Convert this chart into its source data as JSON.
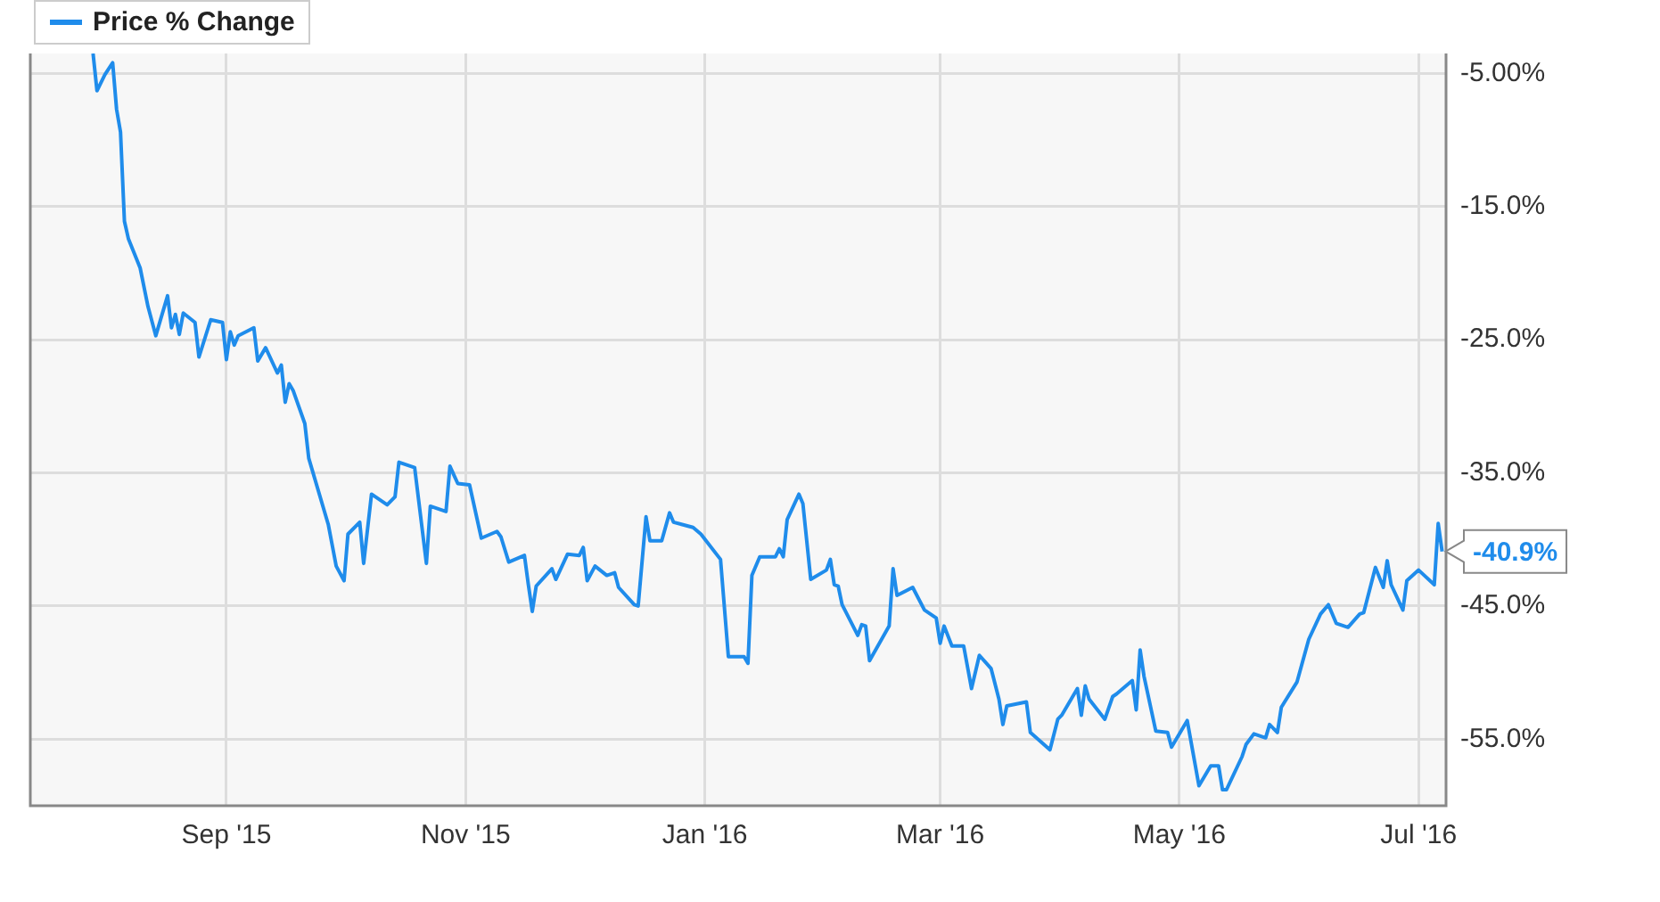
{
  "chart_data": {
    "type": "line",
    "legend": "top left",
    "grid": true,
    "marker": "none",
    "line_style": "solid",
    "xlim": [
      "2015-07-13",
      "2016-07-08"
    ],
    "xticks": [
      {
        "value": "2015-09-01",
        "label": "Sep '15"
      },
      {
        "value": "2015-11-01",
        "label": "Nov '15"
      },
      {
        "value": "2016-01-01",
        "label": "Jan '16"
      },
      {
        "value": "2016-03-01",
        "label": "Mar '16"
      },
      {
        "value": "2016-05-01",
        "label": "May '16"
      },
      {
        "value": "2016-07-01",
        "label": "Jul '16"
      }
    ],
    "ylim": [
      -60,
      -3.5
    ],
    "yticks": [
      {
        "value": -5,
        "label": "-5.00%"
      },
      {
        "value": -15,
        "label": "-15.0%"
      },
      {
        "value": -25,
        "label": "-25.0%"
      },
      {
        "value": -35,
        "label": "-35.0%"
      },
      {
        "value": -45,
        "label": "-45.0%"
      },
      {
        "value": -55,
        "label": "-55.0%"
      }
    ],
    "annotations": [
      {
        "text": "-40.9%",
        "x": "2016-07-07",
        "y": -40.9
      }
    ],
    "x": [
      "2015-07-29",
      "2015-07-30",
      "2015-08-01",
      "2015-08-03",
      "2015-08-04",
      "2015-08-05",
      "2015-08-06",
      "2015-08-07",
      "2015-08-10",
      "2015-08-12",
      "2015-08-14",
      "2015-08-17",
      "2015-08-18",
      "2015-08-19",
      "2015-08-20",
      "2015-08-21",
      "2015-08-24",
      "2015-08-25",
      "2015-08-28",
      "2015-08-31",
      "2015-09-01",
      "2015-09-02",
      "2015-09-03",
      "2015-09-04",
      "2015-09-08",
      "2015-09-09",
      "2015-09-11",
      "2015-09-14",
      "2015-09-15",
      "2015-09-16",
      "2015-09-17",
      "2015-09-18",
      "2015-09-21",
      "2015-09-22",
      "2015-09-27",
      "2015-09-29",
      "2015-10-01",
      "2015-10-02",
      "2015-10-05",
      "2015-10-06",
      "2015-10-08",
      "2015-10-12",
      "2015-10-14",
      "2015-10-15",
      "2015-10-19",
      "2015-10-22",
      "2015-10-23",
      "2015-10-27",
      "2015-10-28",
      "2015-10-30",
      "2015-11-02",
      "2015-11-05",
      "2015-11-09",
      "2015-11-10",
      "2015-11-12",
      "2015-11-16",
      "2015-11-17",
      "2015-11-18",
      "2015-11-19",
      "2015-11-23",
      "2015-11-24",
      "2015-11-27",
      "2015-11-30",
      "2015-12-01",
      "2015-12-02",
      "2015-12-04",
      "2015-12-07",
      "2015-12-09",
      "2015-12-10",
      "2015-12-14",
      "2015-12-15",
      "2015-12-17",
      "2015-12-18",
      "2015-12-21",
      "2015-12-23",
      "2015-12-24",
      "2015-12-29",
      "2015-12-31",
      "2016-01-05",
      "2016-01-07",
      "2016-01-11",
      "2016-01-12",
      "2016-01-13",
      "2016-01-15",
      "2016-01-19",
      "2016-01-20",
      "2016-01-21",
      "2016-01-22",
      "2016-01-25",
      "2016-01-26",
      "2016-01-28",
      "2016-02-01",
      "2016-02-02",
      "2016-02-03",
      "2016-02-04",
      "2016-02-05",
      "2016-02-09",
      "2016-02-10",
      "2016-02-11",
      "2016-02-12",
      "2016-02-17",
      "2016-02-18",
      "2016-02-19",
      "2016-02-23",
      "2016-02-26",
      "2016-02-29",
      "2016-03-01",
      "2016-03-02",
      "2016-03-04",
      "2016-03-07",
      "2016-03-09",
      "2016-03-11",
      "2016-03-14",
      "2016-03-16",
      "2016-03-17",
      "2016-03-18",
      "2016-03-23",
      "2016-03-24",
      "2016-03-29",
      "2016-03-31",
      "2016-04-01",
      "2016-04-05",
      "2016-04-06",
      "2016-04-07",
      "2016-04-08",
      "2016-04-12",
      "2016-04-14",
      "2016-04-15",
      "2016-04-19",
      "2016-04-20",
      "2016-04-21",
      "2016-04-22",
      "2016-04-25",
      "2016-04-28",
      "2016-04-29",
      "2016-05-03",
      "2016-05-06",
      "2016-05-09",
      "2016-05-11",
      "2016-05-12",
      "2016-05-13",
      "2016-05-17",
      "2016-05-18",
      "2016-05-20",
      "2016-05-23",
      "2016-05-24",
      "2016-05-26",
      "2016-05-27",
      "2016-05-31",
      "2016-06-03",
      "2016-06-06",
      "2016-06-08",
      "2016-06-10",
      "2016-06-13",
      "2016-06-16",
      "2016-06-17",
      "2016-06-20",
      "2016-06-22",
      "2016-06-23",
      "2016-06-24",
      "2016-06-27",
      "2016-06-28",
      "2016-07-01",
      "2016-07-05",
      "2016-07-06",
      "2016-07-07"
    ],
    "series": [
      {
        "name": "Price % Change",
        "color": "#1f8ceb",
        "values": [
          -3.5,
          -6.3,
          -5.1,
          -4.2,
          -7.7,
          -9.4,
          -16.1,
          -17.4,
          -19.6,
          -22.5,
          -24.7,
          -21.7,
          -24.1,
          -23.1,
          -24.6,
          -23.0,
          -23.7,
          -26.3,
          -23.5,
          -23.7,
          -26.5,
          -24.4,
          -25.4,
          -24.7,
          -24.1,
          -26.6,
          -25.6,
          -27.5,
          -26.9,
          -29.7,
          -28.3,
          -28.8,
          -31.3,
          -33.9,
          -38.9,
          -42.0,
          -43.1,
          -39.6,
          -38.7,
          -41.8,
          -36.6,
          -37.4,
          -36.8,
          -34.2,
          -34.6,
          -41.8,
          -37.5,
          -37.9,
          -34.5,
          -35.8,
          -35.9,
          -39.9,
          -39.4,
          -39.8,
          -41.7,
          -41.2,
          -43.4,
          -45.4,
          -43.5,
          -42.2,
          -43.0,
          -41.1,
          -41.2,
          -40.6,
          -43.1,
          -42.0,
          -42.7,
          -42.5,
          -43.6,
          -44.9,
          -45.0,
          -38.3,
          -40.1,
          -40.1,
          -38.0,
          -38.7,
          -39.1,
          -39.6,
          -41.5,
          -48.8,
          -48.8,
          -49.3,
          -42.7,
          -41.3,
          -41.3,
          -40.7,
          -41.3,
          -38.5,
          -36.6,
          -37.3,
          -43.0,
          -42.3,
          -41.5,
          -43.4,
          -43.5,
          -44.9,
          -47.2,
          -46.4,
          -46.5,
          -49.1,
          -46.5,
          -42.2,
          -44.2,
          -43.6,
          -45.3,
          -45.9,
          -47.8,
          -46.5,
          -48.0,
          -48.0,
          -51.2,
          -48.7,
          -49.7,
          -52.0,
          -53.9,
          -52.5,
          -52.2,
          -54.5,
          -55.8,
          -53.5,
          -53.2,
          -51.2,
          -53.2,
          -51.0,
          -52.0,
          -53.5,
          -51.8,
          -51.6,
          -50.6,
          -52.8,
          -48.3,
          -50.3,
          -54.4,
          -54.5,
          -55.6,
          -53.6,
          -58.5,
          -57.0,
          -57.0,
          -58.8,
          -58.8,
          -56.3,
          -55.4,
          -54.6,
          -54.9,
          -53.9,
          -54.5,
          -52.6,
          -50.7,
          -47.5,
          -45.6,
          -44.9,
          -46.3,
          -46.6,
          -45.6,
          -45.5,
          -42.1,
          -43.6,
          -41.6,
          -43.4,
          -45.3,
          -43.1,
          -42.3,
          -43.4,
          -38.8,
          -40.9
        ]
      }
    ]
  }
}
